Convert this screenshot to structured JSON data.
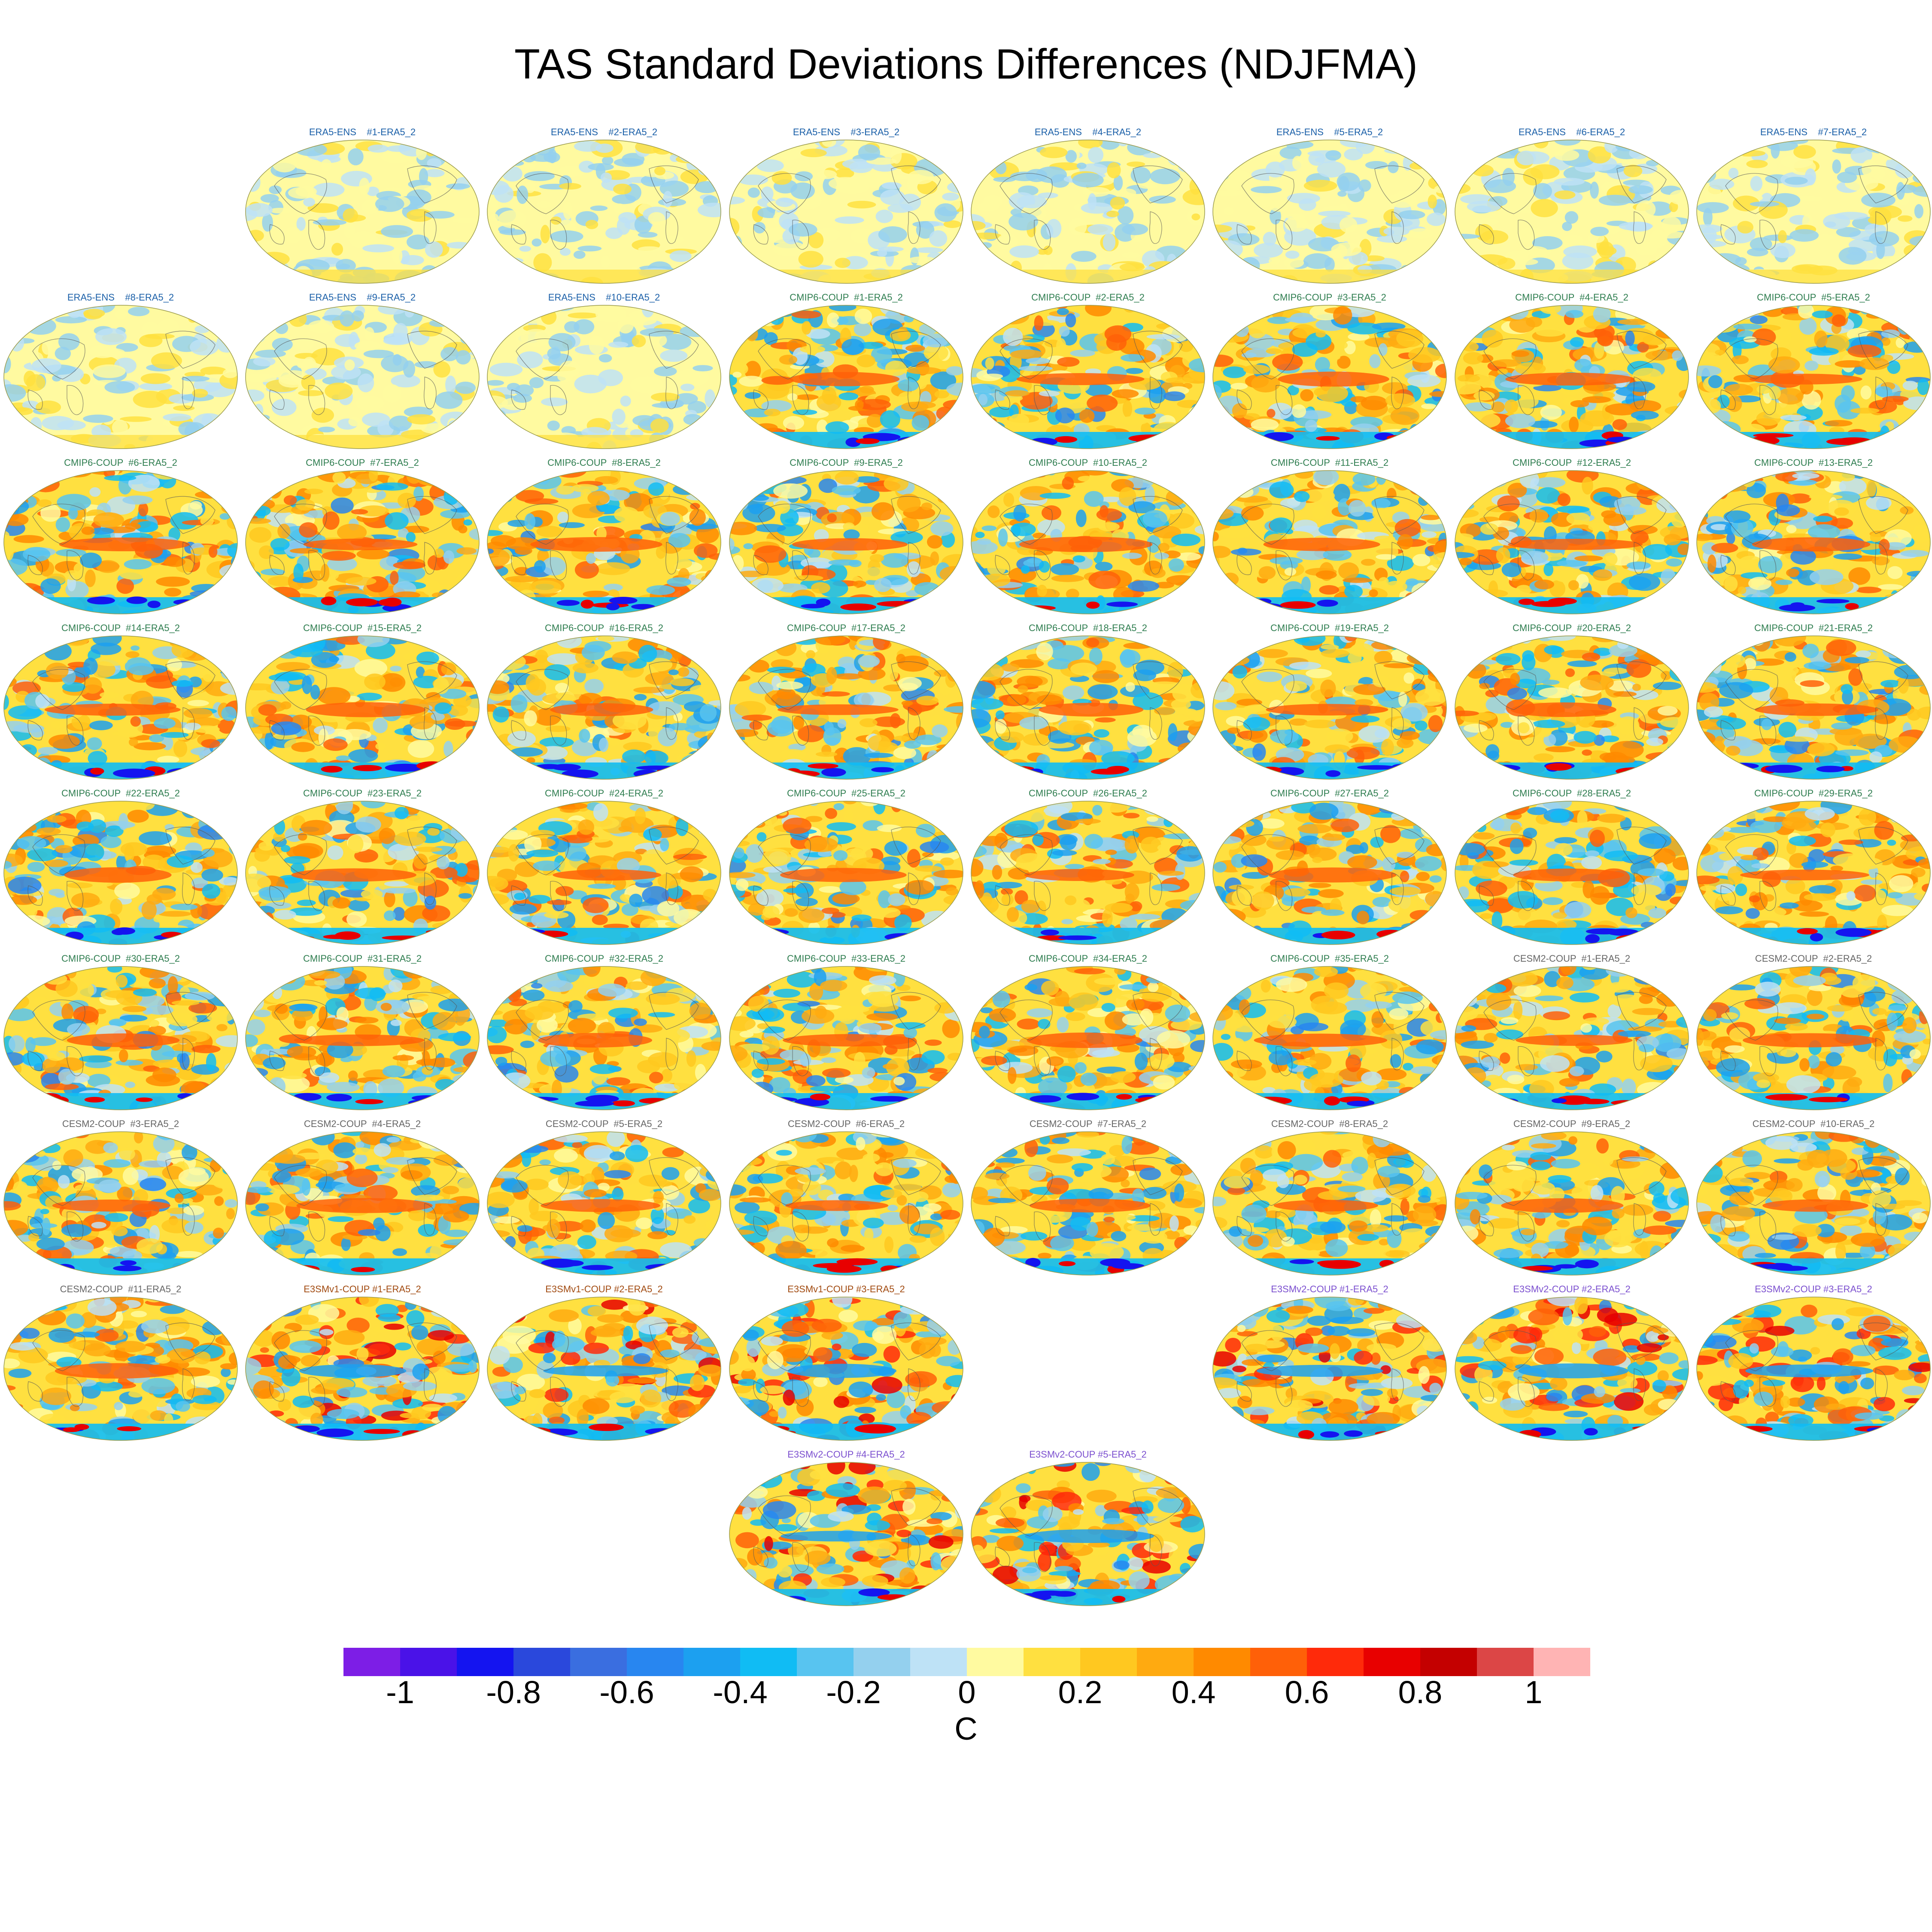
{
  "title": "TAS Standard Deviations Differences (NDJFMA)",
  "group_colors": {
    "ERA5-ENS": "#1a5fa8",
    "CMIP6-COUP": "#2e7d4f",
    "CESM2-COUP": "#666666",
    "E3SMv1-COUP": "#a14a10",
    "E3SMv2-COUP": "#7b4fcf"
  },
  "chart_data": {
    "type": "heatmap",
    "rows": [
      {
        "cols": [
          1,
          2,
          3,
          4,
          5,
          6,
          7
        ],
        "panels": [
          {
            "label": "ERA5-ENS    #1-ERA5_2",
            "group": "ERA5-ENS"
          },
          {
            "label": "ERA5-ENS    #2-ERA5_2",
            "group": "ERA5-ENS"
          },
          {
            "label": "ERA5-ENS    #3-ERA5_2",
            "group": "ERA5-ENS"
          },
          {
            "label": "ERA5-ENS    #4-ERA5_2",
            "group": "ERA5-ENS"
          },
          {
            "label": "ERA5-ENS    #5-ERA5_2",
            "group": "ERA5-ENS"
          },
          {
            "label": "ERA5-ENS    #6-ERA5_2",
            "group": "ERA5-ENS"
          },
          {
            "label": "ERA5-ENS    #7-ERA5_2",
            "group": "ERA5-ENS"
          }
        ]
      },
      {
        "cols": [
          0,
          1,
          2,
          3,
          4,
          5,
          6,
          7
        ],
        "panels": [
          {
            "label": "ERA5-ENS    #8-ERA5_2",
            "group": "ERA5-ENS"
          },
          {
            "label": "ERA5-ENS    #9-ERA5_2",
            "group": "ERA5-ENS"
          },
          {
            "label": "ERA5-ENS    #10-ERA5_2",
            "group": "ERA5-ENS"
          },
          {
            "label": "CMIP6-COUP  #1-ERA5_2",
            "group": "CMIP6-COUP"
          },
          {
            "label": "CMIP6-COUP  #2-ERA5_2",
            "group": "CMIP6-COUP"
          },
          {
            "label": "CMIP6-COUP  #3-ERA5_2",
            "group": "CMIP6-COUP"
          },
          {
            "label": "CMIP6-COUP  #4-ERA5_2",
            "group": "CMIP6-COUP"
          },
          {
            "label": "CMIP6-COUP  #5-ERA5_2",
            "group": "CMIP6-COUP"
          }
        ]
      },
      {
        "cols": [
          0,
          1,
          2,
          3,
          4,
          5,
          6,
          7
        ],
        "panels": [
          {
            "label": "CMIP6-COUP  #6-ERA5_2",
            "group": "CMIP6-COUP"
          },
          {
            "label": "CMIP6-COUP  #7-ERA5_2",
            "group": "CMIP6-COUP"
          },
          {
            "label": "CMIP6-COUP  #8-ERA5_2",
            "group": "CMIP6-COUP"
          },
          {
            "label": "CMIP6-COUP  #9-ERA5_2",
            "group": "CMIP6-COUP"
          },
          {
            "label": "CMIP6-COUP  #10-ERA5_2",
            "group": "CMIP6-COUP"
          },
          {
            "label": "CMIP6-COUP  #11-ERA5_2",
            "group": "CMIP6-COUP"
          },
          {
            "label": "CMIP6-COUP  #12-ERA5_2",
            "group": "CMIP6-COUP"
          },
          {
            "label": "CMIP6-COUP  #13-ERA5_2",
            "group": "CMIP6-COUP"
          }
        ]
      },
      {
        "cols": [
          0,
          1,
          2,
          3,
          4,
          5,
          6,
          7
        ],
        "panels": [
          {
            "label": "CMIP6-COUP  #14-ERA5_2",
            "group": "CMIP6-COUP"
          },
          {
            "label": "CMIP6-COUP  #15-ERA5_2",
            "group": "CMIP6-COUP"
          },
          {
            "label": "CMIP6-COUP  #16-ERA5_2",
            "group": "CMIP6-COUP"
          },
          {
            "label": "CMIP6-COUP  #17-ERA5_2",
            "group": "CMIP6-COUP"
          },
          {
            "label": "CMIP6-COUP  #18-ERA5_2",
            "group": "CMIP6-COUP"
          },
          {
            "label": "CMIP6-COUP  #19-ERA5_2",
            "group": "CMIP6-COUP"
          },
          {
            "label": "CMIP6-COUP  #20-ERA5_2",
            "group": "CMIP6-COUP"
          },
          {
            "label": "CMIP6-COUP  #21-ERA5_2",
            "group": "CMIP6-COUP"
          }
        ]
      },
      {
        "cols": [
          0,
          1,
          2,
          3,
          4,
          5,
          6,
          7
        ],
        "panels": [
          {
            "label": "CMIP6-COUP  #22-ERA5_2",
            "group": "CMIP6-COUP"
          },
          {
            "label": "CMIP6-COUP  #23-ERA5_2",
            "group": "CMIP6-COUP"
          },
          {
            "label": "CMIP6-COUP  #24-ERA5_2",
            "group": "CMIP6-COUP"
          },
          {
            "label": "CMIP6-COUP  #25-ERA5_2",
            "group": "CMIP6-COUP"
          },
          {
            "label": "CMIP6-COUP  #26-ERA5_2",
            "group": "CMIP6-COUP"
          },
          {
            "label": "CMIP6-COUP  #27-ERA5_2",
            "group": "CMIP6-COUP"
          },
          {
            "label": "CMIP6-COUP  #28-ERA5_2",
            "group": "CMIP6-COUP"
          },
          {
            "label": "CMIP6-COUP  #29-ERA5_2",
            "group": "CMIP6-COUP"
          }
        ]
      },
      {
        "cols": [
          0,
          1,
          2,
          3,
          4,
          5,
          6,
          7
        ],
        "panels": [
          {
            "label": "CMIP6-COUP  #30-ERA5_2",
            "group": "CMIP6-COUP"
          },
          {
            "label": "CMIP6-COUP  #31-ERA5_2",
            "group": "CMIP6-COUP"
          },
          {
            "label": "CMIP6-COUP  #32-ERA5_2",
            "group": "CMIP6-COUP"
          },
          {
            "label": "CMIP6-COUP  #33-ERA5_2",
            "group": "CMIP6-COUP"
          },
          {
            "label": "CMIP6-COUP  #34-ERA5_2",
            "group": "CMIP6-COUP"
          },
          {
            "label": "CMIP6-COUP  #35-ERA5_2",
            "group": "CMIP6-COUP"
          },
          {
            "label": "CESM2-COUP  #1-ERA5_2",
            "group": "CESM2-COUP"
          },
          {
            "label": "CESM2-COUP  #2-ERA5_2",
            "group": "CESM2-COUP"
          }
        ]
      },
      {
        "cols": [
          0,
          1,
          2,
          3,
          4,
          5,
          6,
          7
        ],
        "panels": [
          {
            "label": "CESM2-COUP  #3-ERA5_2",
            "group": "CESM2-COUP"
          },
          {
            "label": "CESM2-COUP  #4-ERA5_2",
            "group": "CESM2-COUP"
          },
          {
            "label": "CESM2-COUP  #5-ERA5_2",
            "group": "CESM2-COUP"
          },
          {
            "label": "CESM2-COUP  #6-ERA5_2",
            "group": "CESM2-COUP"
          },
          {
            "label": "CESM2-COUP  #7-ERA5_2",
            "group": "CESM2-COUP"
          },
          {
            "label": "CESM2-COUP  #8-ERA5_2",
            "group": "CESM2-COUP"
          },
          {
            "label": "CESM2-COUP  #9-ERA5_2",
            "group": "CESM2-COUP"
          },
          {
            "label": "CESM2-COUP  #10-ERA5_2",
            "group": "CESM2-COUP"
          }
        ]
      },
      {
        "cols": [
          0,
          1,
          2,
          3,
          5,
          6,
          7
        ],
        "panels": [
          {
            "label": "CESM2-COUP  #11-ERA5_2",
            "group": "CESM2-COUP"
          },
          {
            "label": "E3SMv1-COUP #1-ERA5_2",
            "group": "E3SMv1-COUP"
          },
          {
            "label": "E3SMv1-COUP #2-ERA5_2",
            "group": "E3SMv1-COUP"
          },
          {
            "label": "E3SMv1-COUP #3-ERA5_2",
            "group": "E3SMv1-COUP"
          },
          {
            "label": "E3SMv2-COUP #1-ERA5_2",
            "group": "E3SMv2-COUP"
          },
          {
            "label": "E3SMv2-COUP #2-ERA5_2",
            "group": "E3SMv2-COUP"
          },
          {
            "label": "E3SMv2-COUP #3-ERA5_2",
            "group": "E3SMv2-COUP"
          }
        ]
      },
      {
        "cols": [
          3,
          4
        ],
        "panels": [
          {
            "label": "E3SMv2-COUP #4-ERA5_2",
            "group": "E3SMv2-COUP"
          },
          {
            "label": "E3SMv2-COUP #5-ERA5_2",
            "group": "E3SMv2-COUP"
          }
        ]
      }
    ],
    "colorbar": {
      "label": "C",
      "range": [
        -1.1,
        1.1
      ],
      "ticks": [
        "-1",
        "-0.8",
        "-0.6",
        "-0.4",
        "-0.2",
        "0",
        "0.2",
        "0.4",
        "0.6",
        "0.8",
        "1"
      ],
      "tick_values": [
        -1,
        -0.8,
        -0.6,
        -0.4,
        -0.2,
        0,
        0.2,
        0.4,
        0.6,
        0.8,
        1
      ],
      "colors": [
        "#7d1ee6",
        "#4a12e8",
        "#1414f0",
        "#2a48dc",
        "#3a6ee0",
        "#2886f0",
        "#1ca0f0",
        "#10bcf4",
        "#58c4f0",
        "#94d0ee",
        "#bee2f6",
        "#fffaa0",
        "#ffe040",
        "#ffc820",
        "#ffaa10",
        "#ff8a00",
        "#ff6008",
        "#ff2a0a",
        "#e80000",
        "#c40000",
        "#dc4646",
        "#ffb4b4"
      ]
    }
  }
}
